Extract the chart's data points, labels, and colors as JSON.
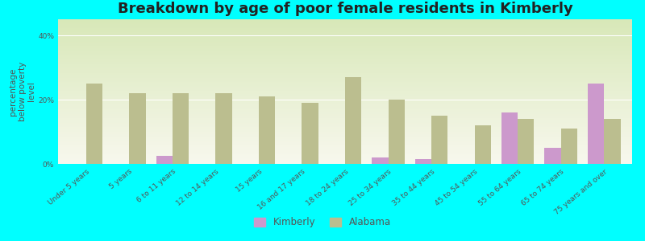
{
  "title": "Breakdown by age of poor female residents in Kimberly",
  "ylabel": "percentage\nbelow poverty\nlevel",
  "background_color": "#00FFFF",
  "categories": [
    "Under 5 years",
    "5 years",
    "6 to 11 years",
    "12 to 14 years",
    "15 years",
    "16 and 17 years",
    "18 to 24 years",
    "25 to 34 years",
    "35 to 44 years",
    "45 to 54 years",
    "55 to 64 years",
    "65 to 74 years",
    "75 years and over"
  ],
  "kimberly_values": [
    0,
    0,
    2.5,
    0,
    0,
    0,
    0,
    2.0,
    1.5,
    0,
    16.0,
    5.0,
    25.0
  ],
  "alabama_values": [
    25.0,
    22.0,
    22.0,
    22.0,
    21.0,
    19.0,
    27.0,
    20.0,
    15.0,
    12.0,
    14.0,
    11.0,
    14.0
  ],
  "kimberly_color": "#cc99cc",
  "alabama_color": "#bbbe8f",
  "ylim": [
    0,
    45
  ],
  "yticks": [
    0,
    20,
    40
  ],
  "ytick_labels": [
    "0%",
    "20%",
    "40%"
  ],
  "title_fontsize": 13,
  "axis_label_fontsize": 7.5,
  "tick_fontsize": 6.5,
  "bar_width": 0.38
}
